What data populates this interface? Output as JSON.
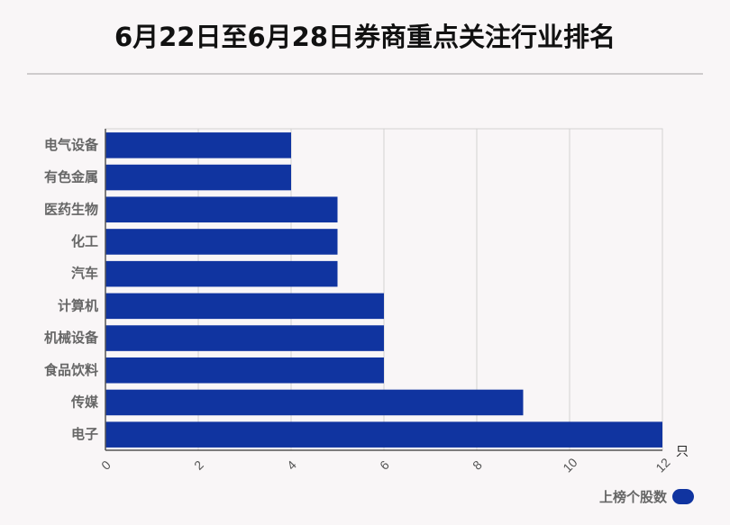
{
  "title": "6月22日至6月28日券商重点关注行业排名",
  "colors": {
    "bar": "#1034a0",
    "grid": "#d2d2d2",
    "axis": "#555555",
    "background": "#f9f6f7"
  },
  "chart_data": {
    "type": "bar",
    "orientation": "horizontal",
    "categories": [
      "电气设备",
      "有色金属",
      "医药生物",
      "化工",
      "汽车",
      "计算机",
      "机械设备",
      "食品饮料",
      "传媒",
      "电子"
    ],
    "series": [
      {
        "name": "上榜个股数",
        "values": [
          4,
          4,
          5,
          5,
          5,
          6,
          6,
          6,
          9,
          12
        ]
      }
    ],
    "xlim": [
      0,
      12
    ],
    "xticks": [
      "0",
      "2",
      "4",
      "6",
      "8",
      "10",
      "12"
    ],
    "xunit": "只",
    "grid": true,
    "legend_position": "bottom-right"
  }
}
